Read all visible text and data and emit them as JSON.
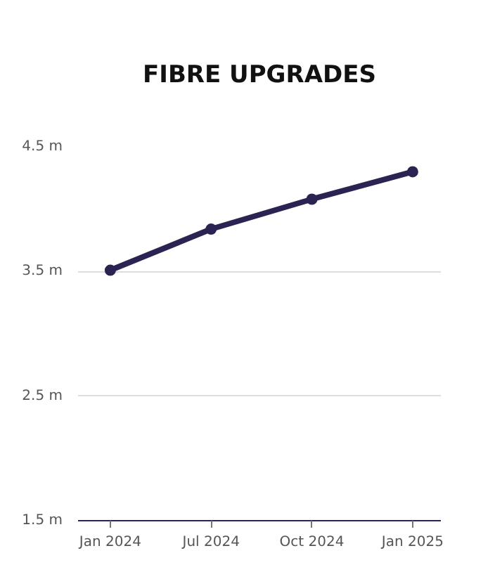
{
  "chart_data": {
    "type": "line",
    "title": "FIBRE UPGRADES",
    "categories": [
      "Jan 2024",
      "Jul 2024",
      "Oct 2024",
      "Jan 2025"
    ],
    "series": [
      {
        "color": "#2b2452",
        "values": [
          3.51,
          3.84,
          4.08,
          4.3
        ]
      }
    ],
    "ylim": [
      1.5,
      4.5
    ],
    "yticks": [
      {
        "value": 1.5,
        "label": "1.5 m"
      },
      {
        "value": 2.5,
        "label": "2.5 m"
      },
      {
        "value": 3.5,
        "label": "3.5 m"
      },
      {
        "value": 4.5,
        "label": "4.5 m"
      }
    ],
    "grid": "y",
    "marker": "circle",
    "line_style": "solid"
  }
}
